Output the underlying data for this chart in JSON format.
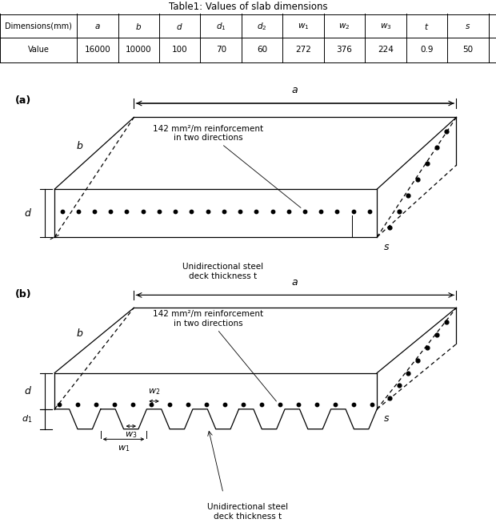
{
  "title_table": "Table1: Values of slab dimensions",
  "table_col1_header": "Dimensions(mm)",
  "table_col1_value": "Value",
  "table_dim_headers": [
    "a",
    "b",
    "d",
    "d1",
    "d2",
    "w1",
    "w2",
    "w3",
    "t",
    "s"
  ],
  "table_dim_values": [
    "16000",
    "10000",
    "100",
    "70",
    "60",
    "272",
    "376",
    "224",
    "0.9",
    "50"
  ],
  "annotation_reinf": "142 mm²/m reinforcement\nin two directions",
  "annotation_deck": "Unidirectional steel\ndeck thickness t",
  "panel_a_label": "(a)",
  "panel_b_label": "(b)",
  "bg_color": "#ffffff",
  "line_color": "#000000"
}
